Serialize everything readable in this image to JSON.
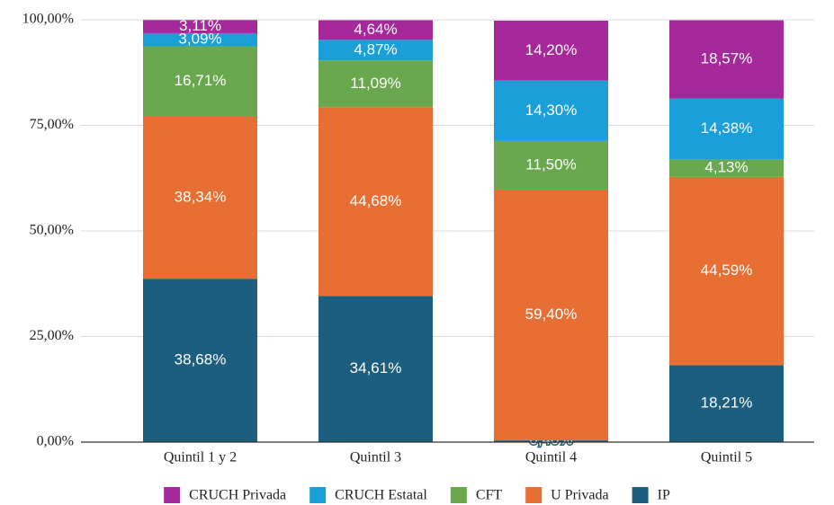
{
  "chart_data": {
    "type": "stacked_bar",
    "categories": [
      "Quintil 1 y 2",
      "Quintil 3",
      "Quintil 4",
      "Quintil 5"
    ],
    "series": [
      {
        "name": "IP",
        "color": "#1b5e80",
        "values": [
          38.68,
          34.61,
          0.4,
          18.21
        ],
        "value_labels": [
          "38,68%",
          "34,61%",
          "0,40%",
          "18,21%"
        ]
      },
      {
        "name": "U Privada",
        "color": "#e86f33",
        "values": [
          38.34,
          44.68,
          59.4,
          44.59
        ],
        "value_labels": [
          "38,34%",
          "44,68%",
          "59,40%",
          "44,59%"
        ]
      },
      {
        "name": "CFT",
        "color": "#6aa84f",
        "values": [
          16.71,
          11.09,
          11.5,
          4.13
        ],
        "value_labels": [
          "16,71%",
          "11,09%",
          "11,50%",
          "4,13%"
        ]
      },
      {
        "name": "CRUCH Estatal",
        "color": "#1a9fd8",
        "values": [
          3.09,
          4.87,
          14.3,
          14.38
        ],
        "value_labels": [
          "3,09%",
          "4,87%",
          "14,30%",
          "14,38%"
        ]
      },
      {
        "name": "CRUCH Privada",
        "color": "#a5299b",
        "values": [
          3.11,
          4.64,
          14.2,
          18.57
        ],
        "value_labels": [
          "3,11%",
          "4,64%",
          "14,20%",
          "18,57%"
        ]
      }
    ],
    "ylim": [
      0,
      100
    ],
    "yticks": [
      {
        "value": 0,
        "label": "0,00%"
      },
      {
        "value": 25,
        "label": "25,00%"
      },
      {
        "value": 50,
        "label": "50,00%"
      },
      {
        "value": 75,
        "label": "75,00%"
      },
      {
        "value": 100,
        "label": "100,00%"
      }
    ],
    "grid": true,
    "legend": "bottom"
  }
}
